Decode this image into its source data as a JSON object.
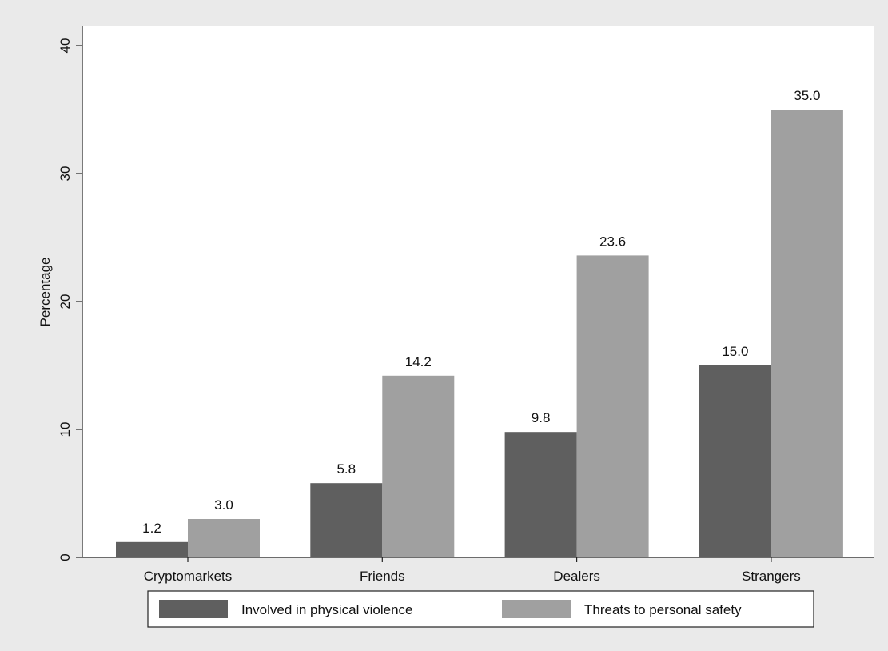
{
  "chart_data": {
    "type": "bar",
    "title": "",
    "xlabel": "",
    "ylabel": "Percentage",
    "ylim": [
      0,
      40
    ],
    "yticks": [
      0,
      10,
      20,
      30,
      40
    ],
    "ytick_labels": [
      "0",
      "10",
      "20",
      "30",
      "40"
    ],
    "categories": [
      "Cryptomarkets",
      "Friends",
      "Dealers",
      "Strangers"
    ],
    "series": [
      {
        "name": "Involved in physical violence",
        "values": [
          1.2,
          5.8,
          9.8,
          15.0
        ],
        "labels": [
          "1.2",
          "5.8",
          "9.8",
          "15.0"
        ],
        "color": "#5f5f5f"
      },
      {
        "name": "Threats to personal safety",
        "values": [
          3.0,
          14.2,
          23.6,
          35.0
        ],
        "labels": [
          "3.0",
          "14.2",
          "23.6",
          "35.0"
        ],
        "color": "#a0a0a0"
      }
    ],
    "grid": false,
    "legend_position": "bottom"
  },
  "colors": {
    "figure_background": "#eaeaea",
    "plot_background": "#ffffff",
    "axis": "#222222",
    "legend_border": "#222222"
  }
}
